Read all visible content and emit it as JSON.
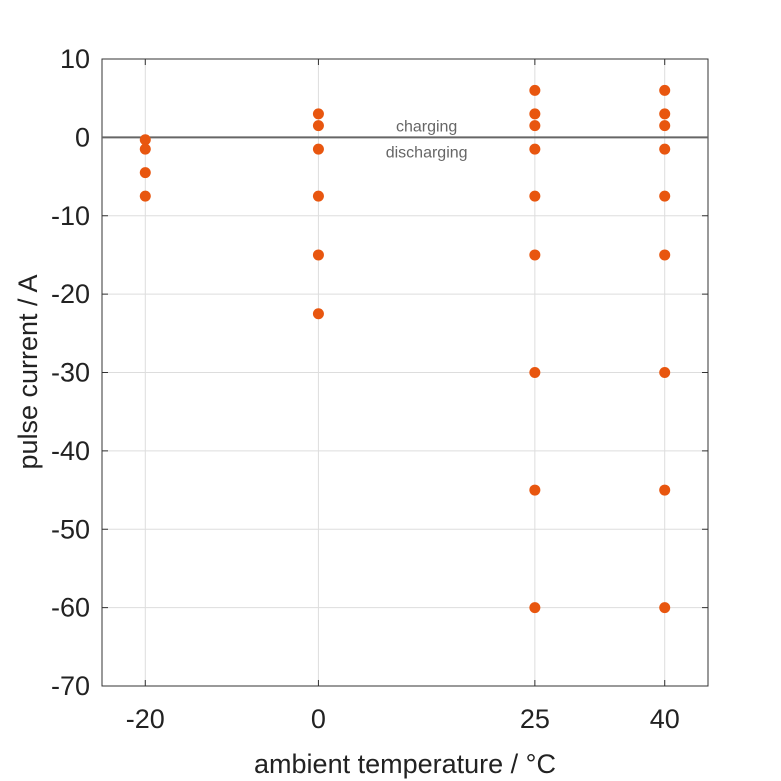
{
  "chart_data": {
    "type": "scatter",
    "title": "",
    "xlabel": "ambient temperature / °C",
    "ylabel": "pulse current / A",
    "x_ticks": [
      -20,
      0,
      25,
      40
    ],
    "x_tick_labels": [
      "-20",
      "0",
      "25",
      "40"
    ],
    "xlim": [
      -25,
      45
    ],
    "y_ticks": [
      10,
      0,
      -10,
      -20,
      -30,
      -40,
      -50,
      -60,
      -70
    ],
    "y_tick_labels": [
      "10",
      "0",
      "-10",
      "-20",
      "-30",
      "-40",
      "-50",
      "-60",
      "-70"
    ],
    "ylim": [
      -70,
      10
    ],
    "grid": true,
    "reference_line": {
      "y": 0,
      "label_above": "charging",
      "label_below": "discharging",
      "label_x": 12.5
    },
    "marker_color": "#E8560F",
    "series": [
      {
        "points": [
          {
            "x": -20,
            "y": -0.3
          },
          {
            "x": -20,
            "y": -1.5
          },
          {
            "x": -20,
            "y": -4.5
          },
          {
            "x": -20,
            "y": -7.5
          },
          {
            "x": 0,
            "y": 3
          },
          {
            "x": 0,
            "y": 1.5
          },
          {
            "x": 0,
            "y": -1.5
          },
          {
            "x": 0,
            "y": -7.5
          },
          {
            "x": 0,
            "y": -15
          },
          {
            "x": 0,
            "y": -22.5
          },
          {
            "x": 25,
            "y": 6
          },
          {
            "x": 25,
            "y": 3
          },
          {
            "x": 25,
            "y": 1.5
          },
          {
            "x": 25,
            "y": -1.5
          },
          {
            "x": 25,
            "y": -7.5
          },
          {
            "x": 25,
            "y": -15
          },
          {
            "x": 25,
            "y": -30
          },
          {
            "x": 25,
            "y": -45
          },
          {
            "x": 25,
            "y": -60
          },
          {
            "x": 40,
            "y": 6
          },
          {
            "x": 40,
            "y": 3
          },
          {
            "x": 40,
            "y": 1.5
          },
          {
            "x": 40,
            "y": -1.5
          },
          {
            "x": 40,
            "y": -7.5
          },
          {
            "x": 40,
            "y": -15
          },
          {
            "x": 40,
            "y": -30
          },
          {
            "x": 40,
            "y": -45
          },
          {
            "x": 40,
            "y": -60
          }
        ]
      }
    ]
  }
}
